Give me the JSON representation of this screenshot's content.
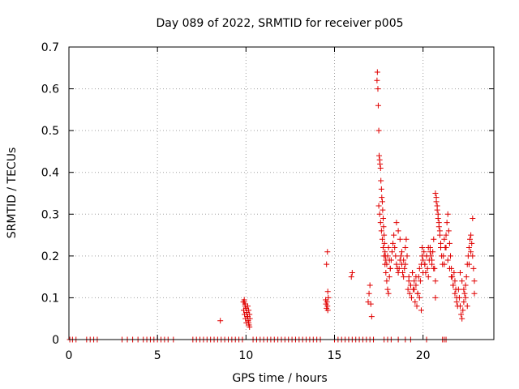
{
  "chart_data": {
    "type": "scatter",
    "title": "Day 089 of 2022, SRMTID for receiver p005",
    "xlabel": "GPS time / hours",
    "ylabel": "SRMTID / TECUs",
    "xlim": [
      0,
      24
    ],
    "ylim": [
      0,
      0.7
    ],
    "xticks": [
      0,
      5,
      10,
      15,
      20
    ],
    "yticks": [
      0,
      0.1,
      0.2,
      0.3,
      0.4,
      0.5,
      0.6,
      0.7
    ],
    "ytick_labels": [
      "0",
      "0.1",
      "0.2",
      "0.3",
      "0.4",
      "0.5",
      "0.6",
      "0.7"
    ],
    "grid": true,
    "marker": "+",
    "color": "#e00000",
    "series": [
      {
        "name": "SRMTID",
        "x": [
          0.05,
          0.2,
          0.4,
          1.0,
          1.2,
          1.4,
          1.6,
          3.0,
          3.3,
          3.6,
          3.9,
          4.2,
          4.4,
          4.6,
          4.8,
          5.0,
          5.2,
          5.4,
          5.6,
          5.9,
          7.0,
          7.2,
          7.4,
          7.6,
          7.8,
          8.0,
          8.2,
          8.4,
          8.6,
          8.8,
          9.0,
          9.2,
          9.4,
          9.6,
          9.8,
          10.4,
          10.6,
          10.8,
          11.0,
          11.2,
          11.4,
          11.6,
          11.8,
          12.0,
          12.2,
          12.4,
          12.6,
          12.8,
          13.0,
          13.2,
          13.4,
          13.6,
          13.8,
          14.0,
          14.2,
          15.0,
          15.2,
          15.4,
          15.6,
          15.8,
          16.0,
          16.2,
          16.4,
          16.6,
          16.8,
          17.0,
          17.2,
          17.8,
          18.0,
          18.2,
          18.6,
          19.0,
          19.3,
          20.2,
          21.1,
          21.2,
          21.3,
          8.55,
          9.85,
          9.87,
          9.9,
          9.92,
          9.95,
          9.97,
          10.0,
          10.02,
          10.05,
          10.07,
          10.1,
          10.12,
          10.15,
          10.17,
          10.2,
          10.22,
          9.9,
          9.95,
          10.0,
          10.05,
          10.1,
          10.15,
          10.2,
          14.5,
          14.52,
          14.55,
          14.57,
          14.6,
          14.62,
          14.65,
          14.55,
          14.6,
          14.62,
          15.95,
          16.0,
          16.9,
          16.95,
          17.0,
          17.05,
          17.1,
          17.4,
          17.42,
          17.45,
          17.47,
          17.5,
          17.52,
          17.55,
          17.57,
          17.6,
          17.62,
          17.65,
          17.67,
          17.7,
          17.72,
          17.75,
          17.77,
          17.8,
          17.82,
          17.85,
          17.87,
          17.9,
          17.95,
          18.0,
          18.05,
          18.1,
          18.15,
          17.5,
          17.55,
          17.6,
          17.65,
          17.7,
          17.75,
          17.8,
          17.85,
          17.9,
          17.95,
          18.0,
          18.05,
          18.1,
          18.15,
          18.2,
          18.25,
          18.3,
          18.35,
          18.4,
          18.45,
          18.5,
          18.55,
          18.6,
          18.65,
          18.7,
          18.75,
          18.8,
          18.85,
          18.9,
          18.95,
          19.0,
          19.05,
          19.1,
          18.5,
          18.6,
          18.7,
          18.8,
          18.9,
          19.0,
          19.15,
          19.2,
          19.25,
          19.3,
          19.35,
          19.4,
          19.45,
          19.5,
          19.55,
          19.6,
          19.65,
          19.7,
          19.75,
          19.8,
          19.85,
          19.9,
          19.95,
          19.2,
          19.3,
          19.4,
          19.5,
          19.6,
          19.7,
          19.8,
          19.9,
          19.95,
          20.0,
          20.05,
          20.1,
          20.15,
          20.2,
          20.25,
          20.3,
          20.35,
          20.4,
          20.45,
          20.5,
          20.55,
          20.6,
          20.65,
          20.7,
          20.0,
          20.1,
          20.2,
          20.3,
          20.4,
          20.5,
          20.6,
          20.7,
          20.7,
          20.75,
          20.8,
          20.85,
          20.9,
          20.95,
          21.0,
          21.05,
          21.1,
          20.75,
          20.8,
          20.85,
          20.9,
          20.95,
          21.0,
          21.15,
          21.2,
          21.25,
          21.3,
          21.35,
          21.4,
          21.45,
          21.5,
          21.55,
          21.6,
          21.65,
          21.7,
          21.75,
          21.8,
          21.85,
          21.9,
          21.95,
          21.2,
          21.3,
          21.4,
          21.5,
          21.6,
          21.7,
          21.8,
          21.9,
          22.0,
          22.05,
          22.1,
          22.15,
          22.2,
          22.25,
          22.3,
          22.35,
          22.4,
          22.45,
          22.5,
          22.55,
          22.6,
          22.65,
          22.7,
          22.75,
          22.8,
          22.85,
          22.9,
          22.1,
          22.2,
          22.3,
          22.4,
          22.5,
          22.6,
          22.7,
          22.8,
          22.9
        ],
        "y": [
          0,
          0,
          0,
          0,
          0,
          0,
          0,
          0,
          0,
          0,
          0,
          0,
          0,
          0,
          0,
          0,
          0,
          0,
          0,
          0,
          0,
          0,
          0,
          0,
          0,
          0,
          0,
          0,
          0,
          0,
          0,
          0,
          0,
          0,
          0,
          0,
          0,
          0,
          0,
          0,
          0,
          0,
          0,
          0,
          0,
          0,
          0,
          0,
          0,
          0,
          0,
          0,
          0,
          0,
          0,
          0,
          0,
          0,
          0,
          0,
          0,
          0,
          0,
          0,
          0,
          0,
          0,
          0,
          0,
          0,
          0,
          0,
          0,
          0,
          0,
          0,
          0,
          0.045,
          0.09,
          0.07,
          0.095,
          0.06,
          0.085,
          0.05,
          0.075,
          0.04,
          0.065,
          0.055,
          0.08,
          0.045,
          0.07,
          0.035,
          0.06,
          0.05,
          0.09,
          0.08,
          0.075,
          0.065,
          0.055,
          0.04,
          0.03,
          0.095,
          0.085,
          0.075,
          0.09,
          0.08,
          0.07,
          0.1,
          0.18,
          0.21,
          0.115,
          0.15,
          0.16,
          0.09,
          0.11,
          0.13,
          0.085,
          0.055,
          0.62,
          0.64,
          0.6,
          0.56,
          0.5,
          0.44,
          0.43,
          0.42,
          0.41,
          0.38,
          0.36,
          0.34,
          0.33,
          0.31,
          0.29,
          0.27,
          0.25,
          0.23,
          0.21,
          0.2,
          0.19,
          0.18,
          0.2,
          0.22,
          0.19,
          0.17,
          0.32,
          0.3,
          0.28,
          0.26,
          0.24,
          0.22,
          0.2,
          0.18,
          0.16,
          0.14,
          0.12,
          0.11,
          0.15,
          0.17,
          0.19,
          0.21,
          0.23,
          0.25,
          0.22,
          0.2,
          0.18,
          0.17,
          0.16,
          0.17,
          0.19,
          0.2,
          0.18,
          0.16,
          0.15,
          0.17,
          0.22,
          0.24,
          0.2,
          0.28,
          0.26,
          0.24,
          0.21,
          0.19,
          0.18,
          0.12,
          0.15,
          0.11,
          0.13,
          0.1,
          0.16,
          0.12,
          0.14,
          0.09,
          0.13,
          0.08,
          0.11,
          0.15,
          0.17,
          0.14,
          0.18,
          0.2,
          0.14,
          0.13,
          0.16,
          0.12,
          0.15,
          0.11,
          0.1,
          0.07,
          0.22,
          0.19,
          0.21,
          0.18,
          0.16,
          0.2,
          0.17,
          0.15,
          0.19,
          0.22,
          0.2,
          0.18,
          0.21,
          0.24,
          0.17,
          0.14,
          0.16,
          0.18,
          0.2,
          0.22,
          0.21,
          0.19,
          0.17,
          0.1,
          0.35,
          0.33,
          0.31,
          0.29,
          0.27,
          0.25,
          0.23,
          0.2,
          0.18,
          0.34,
          0.32,
          0.3,
          0.28,
          0.26,
          0.22,
          0.2,
          0.18,
          0.22,
          0.25,
          0.28,
          0.3,
          0.26,
          0.23,
          0.2,
          0.17,
          0.15,
          0.13,
          0.16,
          0.14,
          0.12,
          0.1,
          0.08,
          0.24,
          0.22,
          0.19,
          0.17,
          0.15,
          0.13,
          0.11,
          0.09,
          0.12,
          0.1,
          0.08,
          0.06,
          0.05,
          0.07,
          0.09,
          0.11,
          0.13,
          0.15,
          0.18,
          0.2,
          0.22,
          0.24,
          0.25,
          0.23,
          0.2,
          0.17,
          0.14,
          0.16,
          0.14,
          0.12,
          0.1,
          0.08,
          0.18,
          0.21,
          0.29,
          0.11
        ]
      }
    ]
  }
}
